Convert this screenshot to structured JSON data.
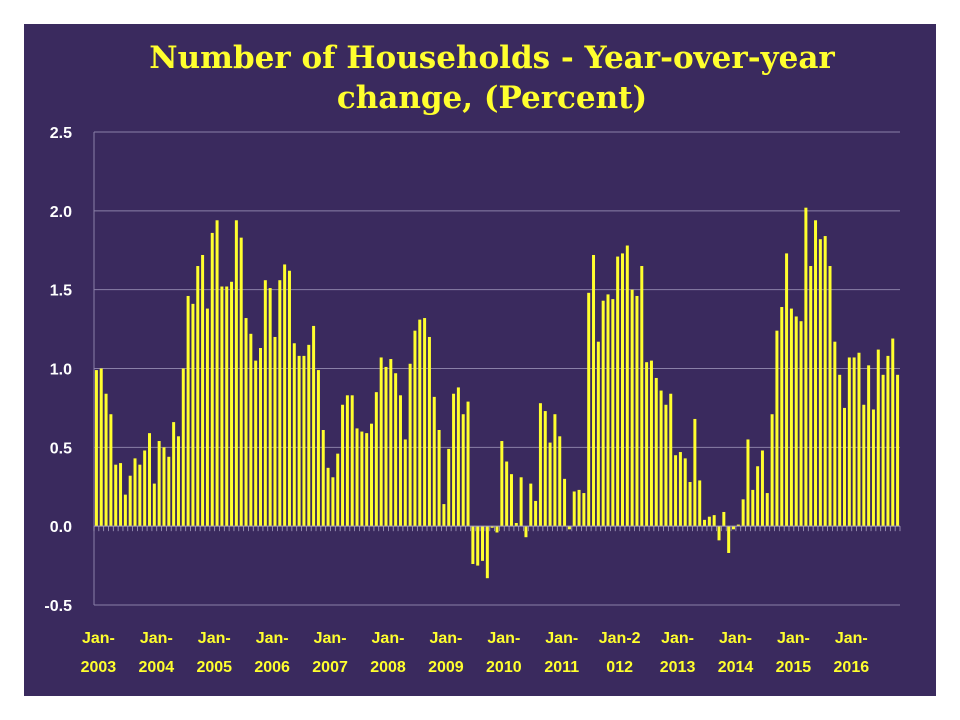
{
  "chart_data": {
    "type": "bar",
    "title_line1": "Number of Households - Year-over-year",
    "title_line2": "change, (Percent)",
    "xlabel": "",
    "ylabel": "",
    "ylim": [
      -0.5,
      2.5
    ],
    "yticks": [
      "2.5",
      "2.0",
      "1.5",
      "1.0",
      "0.5",
      "0.0",
      "-0.5"
    ],
    "ytick_values": [
      2.5,
      2.0,
      1.5,
      1.0,
      0.5,
      0.0,
      -0.5
    ],
    "grid": true,
    "legend": "none",
    "x_start": "Jan-2003",
    "x_end": "Dec-2016",
    "xtick_labels": [
      [
        "Jan-",
        "2003"
      ],
      [
        "Jan-",
        "2004"
      ],
      [
        "Jan-",
        "2005"
      ],
      [
        "Jan-",
        "2006"
      ],
      [
        "Jan-",
        "2007"
      ],
      [
        "Jan-",
        "2008"
      ],
      [
        "Jan-",
        "2009"
      ],
      [
        "Jan-",
        "2010"
      ],
      [
        "Jan-",
        "2011"
      ],
      [
        "Jan-2",
        "012"
      ],
      [
        "Jan-",
        "2013"
      ],
      [
        "Jan-",
        "2014"
      ],
      [
        "Jan-",
        "2015"
      ],
      [
        "Jan-",
        "2016"
      ]
    ],
    "values": [
      0.99,
      1.0,
      0.84,
      0.71,
      0.39,
      0.4,
      0.2,
      0.32,
      0.43,
      0.39,
      0.48,
      0.59,
      0.27,
      0.54,
      0.5,
      0.44,
      0.66,
      0.57,
      1.0,
      1.46,
      1.41,
      1.65,
      1.72,
      1.38,
      1.86,
      1.94,
      1.52,
      1.52,
      1.55,
      1.94,
      1.83,
      1.32,
      1.22,
      1.05,
      1.13,
      1.56,
      1.51,
      1.2,
      1.56,
      1.66,
      1.62,
      1.16,
      1.08,
      1.08,
      1.15,
      1.27,
      0.99,
      0.61,
      0.37,
      0.31,
      0.46,
      0.77,
      0.83,
      0.83,
      0.62,
      0.6,
      0.59,
      0.65,
      0.85,
      1.07,
      1.01,
      1.06,
      0.97,
      0.83,
      0.55,
      1.03,
      1.24,
      1.31,
      1.32,
      1.2,
      0.82,
      0.61,
      0.14,
      0.49,
      0.84,
      0.88,
      0.71,
      0.79,
      -0.24,
      -0.25,
      -0.22,
      -0.33,
      -0.01,
      -0.04,
      0.54,
      0.41,
      0.33,
      0.02,
      0.31,
      -0.07,
      0.27,
      0.16,
      0.78,
      0.73,
      0.53,
      0.71,
      0.57,
      0.3,
      -0.02,
      0.22,
      0.23,
      0.21,
      1.48,
      1.72,
      1.17,
      1.43,
      1.47,
      1.44,
      1.71,
      1.73,
      1.78,
      1.5,
      1.46,
      1.65,
      1.04,
      1.05,
      0.94,
      0.86,
      0.77,
      0.84,
      0.45,
      0.47,
      0.43,
      0.28,
      0.68,
      0.29,
      0.04,
      0.06,
      0.07,
      -0.09,
      0.09,
      -0.17,
      -0.02,
      0.01,
      0.17,
      0.55,
      0.23,
      0.38,
      0.48,
      0.21,
      0.71,
      1.24,
      1.39,
      1.73,
      1.38,
      1.33,
      1.3,
      2.02,
      1.65,
      1.94,
      1.82,
      1.84,
      1.65,
      1.17,
      0.96,
      0.75,
      1.07,
      1.07,
      1.1,
      0.77,
      1.02,
      0.74,
      1.12,
      0.96,
      1.08,
      1.19,
      0.96
    ],
    "colors": {
      "background": "#3a2a5e",
      "bar": "#ffff2e",
      "title": "#ffff2e",
      "ytick": "#ffffff",
      "xtick": "#ffff2e",
      "grid": "#8a80a8",
      "axis": "#a8a0c0"
    }
  }
}
